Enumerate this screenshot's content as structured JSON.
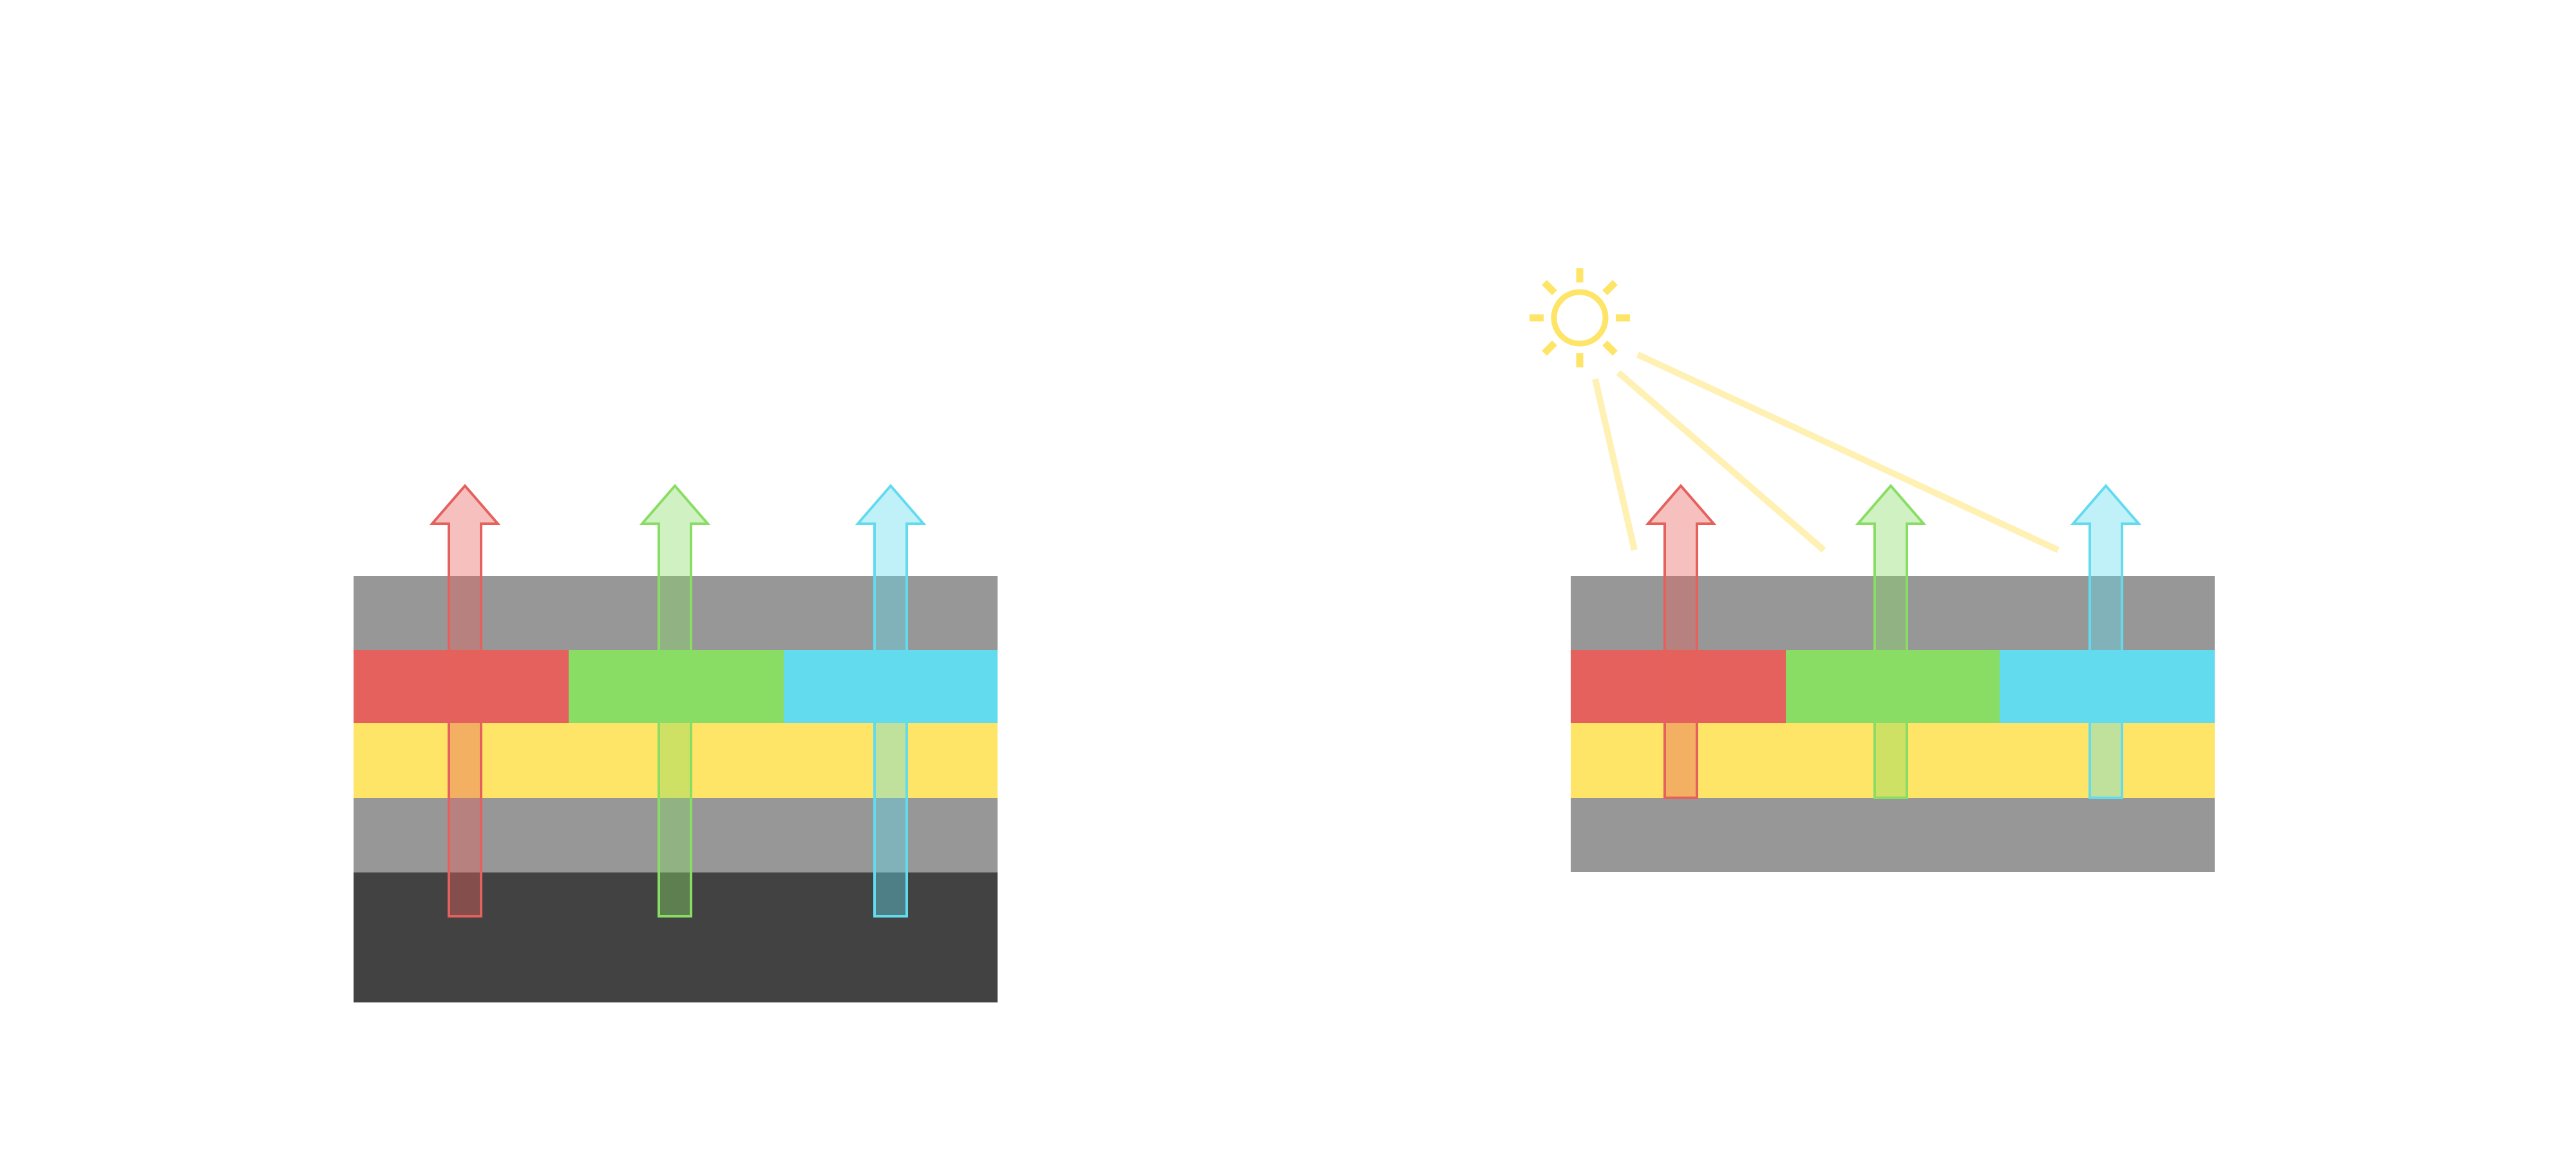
{
  "colors": {
    "background": "#ffffff",
    "layer_gray": "#979797",
    "layer_dark": "#424242",
    "red": "#e5615d",
    "green": "#89dd64",
    "cyan": "#63dbee",
    "yellow": "#fee567",
    "light_beam": "#fff0b3"
  },
  "left_panel": {
    "layers": [
      "gray",
      "red-green-cyan",
      "yellow",
      "gray",
      "dark"
    ],
    "arrows": [
      "red",
      "green",
      "cyan"
    ]
  },
  "right_panel": {
    "icons": [
      "sun-icon"
    ],
    "layers": [
      "gray",
      "red-green-cyan",
      "yellow",
      "gray"
    ],
    "arrows": [
      "red",
      "green",
      "cyan"
    ],
    "light_beams": 3
  }
}
